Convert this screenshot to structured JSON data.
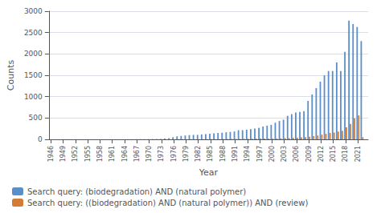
{
  "chart_data": {
    "type": "bar",
    "xlabel": "Year",
    "ylabel": "Counts",
    "x": [
      1946,
      1947,
      1948,
      1949,
      1950,
      1951,
      1952,
      1953,
      1954,
      1955,
      1956,
      1957,
      1958,
      1959,
      1960,
      1961,
      1962,
      1963,
      1964,
      1965,
      1966,
      1967,
      1968,
      1969,
      1970,
      1971,
      1972,
      1973,
      1974,
      1975,
      1976,
      1977,
      1978,
      1979,
      1980,
      1981,
      1982,
      1983,
      1984,
      1985,
      1986,
      1987,
      1988,
      1989,
      1990,
      1991,
      1992,
      1993,
      1994,
      1995,
      1996,
      1997,
      1998,
      1999,
      2000,
      2001,
      2002,
      2003,
      2004,
      2005,
      2006,
      2007,
      2008,
      2009,
      2010,
      2011,
      2012,
      2013,
      2014,
      2015,
      2016,
      2017,
      2018,
      2019,
      2020,
      2021,
      2022
    ],
    "series": [
      {
        "name": "Search query: (biodegradation) AND (natural polymer)",
        "color": "#5b8fc9",
        "values": [
          1,
          1,
          1,
          1,
          1,
          1,
          1,
          1,
          1,
          1,
          1,
          1,
          1,
          1,
          1,
          2,
          2,
          2,
          2,
          3,
          3,
          4,
          5,
          5,
          6,
          7,
          8,
          10,
          20,
          30,
          50,
          70,
          80,
          90,
          100,
          105,
          105,
          115,
          120,
          130,
          140,
          150,
          155,
          165,
          175,
          185,
          215,
          215,
          225,
          240,
          255,
          270,
          300,
          320,
          340,
          390,
          430,
          460,
          550,
          590,
          630,
          640,
          660,
          900,
          1050,
          1200,
          1350,
          1500,
          1600,
          1600,
          1800,
          1600,
          2050,
          2780,
          2700,
          2630,
          2300
        ]
      },
      {
        "name": "Search query: ((biodegradation) AND (natural polymer)) AND (review)",
        "color": "#d47b35",
        "values": [
          0,
          0,
          0,
          0,
          0,
          0,
          0,
          0,
          0,
          0,
          0,
          0,
          0,
          0,
          0,
          0,
          0,
          0,
          0,
          0,
          0,
          0,
          0,
          0,
          0,
          0,
          0,
          0,
          0,
          0,
          2,
          2,
          3,
          3,
          4,
          4,
          4,
          5,
          5,
          6,
          6,
          7,
          8,
          9,
          10,
          11,
          12,
          13,
          14,
          15,
          16,
          17,
          18,
          19,
          20,
          22,
          25,
          28,
          30,
          35,
          40,
          45,
          50,
          60,
          75,
          90,
          110,
          130,
          150,
          160,
          180,
          200,
          280,
          360,
          490,
          560,
          50
        ]
      }
    ],
    "xlim": [
      1945.5,
      2023.5
    ],
    "xticks": [
      1946,
      1949,
      1952,
      1955,
      1958,
      1961,
      1964,
      1967,
      1970,
      1973,
      1976,
      1979,
      1982,
      1985,
      1988,
      1991,
      1994,
      1997,
      2000,
      2003,
      2006,
      2009,
      2012,
      2015,
      2018,
      2021
    ],
    "ylim": [
      0,
      3000
    ],
    "yticks": [
      0,
      500,
      1000,
      1500,
      2000,
      2500,
      3000
    ],
    "grid": true,
    "legend": "lower left"
  }
}
